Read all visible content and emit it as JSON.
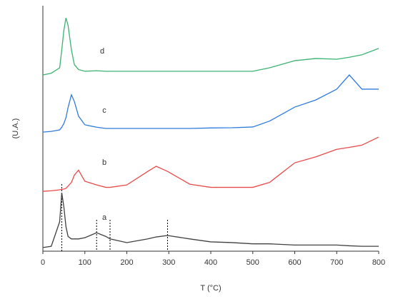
{
  "chart_data": {
    "type": "line",
    "xlabel": "T (°C)",
    "ylabel": "(U.A.)",
    "x": [
      0,
      20,
      40,
      45,
      50,
      55,
      60,
      68,
      75,
      85,
      100,
      128,
      150,
      160,
      200,
      250,
      270,
      297,
      350,
      400,
      450,
      500,
      540,
      600,
      650,
      700,
      730,
      760,
      800
    ],
    "series": [
      {
        "name": "a",
        "color": "#404040",
        "values": [
          1.5,
          2,
          12,
          23.8,
          18,
          10,
          6,
          5,
          5,
          5,
          5.5,
          7.5,
          6,
          5,
          3.5,
          5,
          5.8,
          6.4,
          5,
          3.8,
          3.5,
          3,
          3,
          2.5,
          2.5,
          2.5,
          2.2,
          2,
          2
        ]
      },
      {
        "name": "b",
        "color": "#e84a4a",
        "values": [
          24.4,
          24.6,
          25,
          25.2,
          25.3,
          25.6,
          26.5,
          28,
          31,
          33,
          28.5,
          27,
          26,
          26,
          27,
          32.5,
          34.6,
          32.5,
          27.3,
          26,
          26,
          26,
          28,
          36,
          38.4,
          41.5,
          42.3,
          43.2,
          46.5
        ]
      },
      {
        "name": "c",
        "color": "#2e7be0",
        "values": [
          48.5,
          48.8,
          49.4,
          50.5,
          52,
          54.4,
          58.5,
          63.7,
          61,
          55,
          51.5,
          50.5,
          50,
          50,
          50,
          50,
          50,
          50,
          50,
          50.2,
          50.3,
          50.6,
          53,
          58.7,
          61.6,
          66,
          71.8,
          66,
          66
        ]
      },
      {
        "name": "d",
        "color": "#3cb371",
        "values": [
          71.8,
          72.5,
          74.7,
          82,
          90,
          95,
          92,
          82,
          76,
          74,
          73.3,
          73.5,
          73.3,
          73.3,
          73.3,
          73.3,
          73.3,
          73.3,
          73.3,
          73.3,
          73.3,
          73.3,
          74.7,
          77.6,
          78.5,
          78.2,
          79,
          80,
          82.6
        ]
      }
    ],
    "markers": [
      45,
      128,
      160,
      297
    ],
    "xlim": [
      0,
      800
    ],
    "xticks": [
      0,
      100,
      200,
      300,
      400,
      500,
      600,
      700,
      800
    ],
    "ylim": [
      0,
      100
    ]
  }
}
